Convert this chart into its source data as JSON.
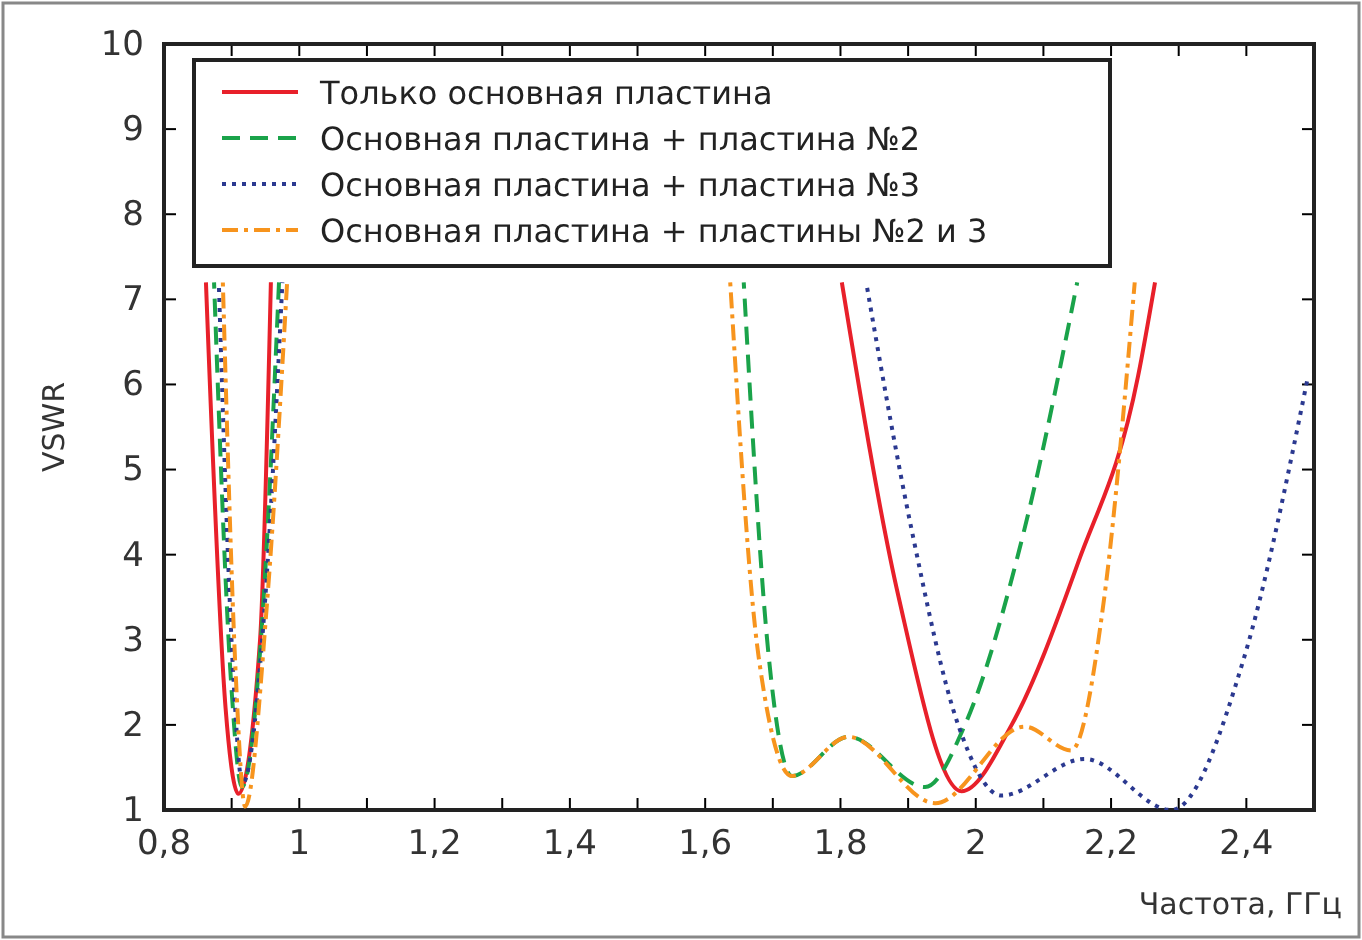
{
  "chart_data": {
    "type": "line",
    "xlabel": "Частота, ГГц",
    "ylabel": "VSWR",
    "xlim": [
      0.8,
      2.5
    ],
    "xticks": [
      {
        "value": 0.8,
        "label": "0,8"
      },
      {
        "value": 0.9,
        "label": null
      },
      {
        "value": 1,
        "label": "1"
      },
      {
        "value": 1.1,
        "label": null
      },
      {
        "value": 1.2,
        "label": "1,2"
      },
      {
        "value": 1.3,
        "label": null
      },
      {
        "value": 1.4,
        "label": "1,4"
      },
      {
        "value": 1.5,
        "label": null
      },
      {
        "value": 1.6,
        "label": "1,6"
      },
      {
        "value": 1.7,
        "label": null
      },
      {
        "value": 1.8,
        "label": "1,8"
      },
      {
        "value": 1.9,
        "label": null
      },
      {
        "value": 2,
        "label": "2"
      },
      {
        "value": 2.1,
        "label": null
      },
      {
        "value": 2.2,
        "label": "2,2"
      },
      {
        "value": 2.3,
        "label": null
      },
      {
        "value": 2.4,
        "label": "2,4"
      }
    ],
    "ylim": [
      1,
      10
    ],
    "yticks": [
      1,
      2,
      3,
      4,
      5,
      6,
      7,
      8,
      9,
      10
    ],
    "grid": false,
    "legend": "top left",
    "marker": "none",
    "series": [
      {
        "name": "Только основная пластина",
        "color": "#e8202a",
        "line_style": "solid",
        "x": [
          0.862,
          0.891,
          0.91,
          0.942,
          0.958,
          null,
          1.802,
          1.886,
          1.979,
          2.053,
          2.151,
          2.24,
          2.265
        ],
        "values": [
          7.2,
          2.2,
          1.19,
          3.0,
          7.2,
          null,
          7.2,
          3.5,
          1.22,
          2.0,
          3.9,
          6.1,
          7.2
        ]
      },
      {
        "name": "Основная пластина + пластина №2",
        "color": "#1aa34a",
        "line_style": "dashed",
        "x": [
          0.874,
          0.9,
          0.915,
          0.945,
          0.97,
          null,
          1.657,
          1.694,
          1.728,
          1.812,
          1.925,
          1.984,
          2.072,
          2.15
        ],
        "values": [
          7.2,
          2.4,
          1.27,
          3.2,
          7.2,
          null,
          7.2,
          2.8,
          1.4,
          1.86,
          1.27,
          2.0,
          4.3,
          7.2
        ]
      },
      {
        "name": "Основная пластина + пластина №3",
        "color": "#2b3990",
        "line_style": "dotted",
        "x": [
          0.881,
          0.903,
          0.916,
          0.948,
          0.975,
          null,
          1.838,
          1.905,
          1.974,
          2.038,
          2.161,
          2.289,
          2.397,
          2.49
        ],
        "values": [
          7.2,
          2.5,
          1.31,
          3.3,
          7.2,
          null,
          7.2,
          4.3,
          2.0,
          1.17,
          1.6,
          1.0,
          2.8,
          6.05
        ]
      },
      {
        "name": "Основная пластина + пластины №2 и 3",
        "color": "#f7941d",
        "line_style": "dashdot",
        "x": [
          0.887,
          0.906,
          0.92,
          0.952,
          0.982,
          null,
          1.637,
          1.679,
          1.728,
          1.812,
          1.94,
          2.072,
          2.141,
          2.19,
          2.235
        ],
        "values": [
          7.2,
          2.6,
          1.04,
          3.4,
          7.2,
          null,
          7.2,
          2.8,
          1.4,
          1.86,
          1.08,
          1.98,
          1.7,
          3.5,
          7.2
        ]
      }
    ]
  }
}
